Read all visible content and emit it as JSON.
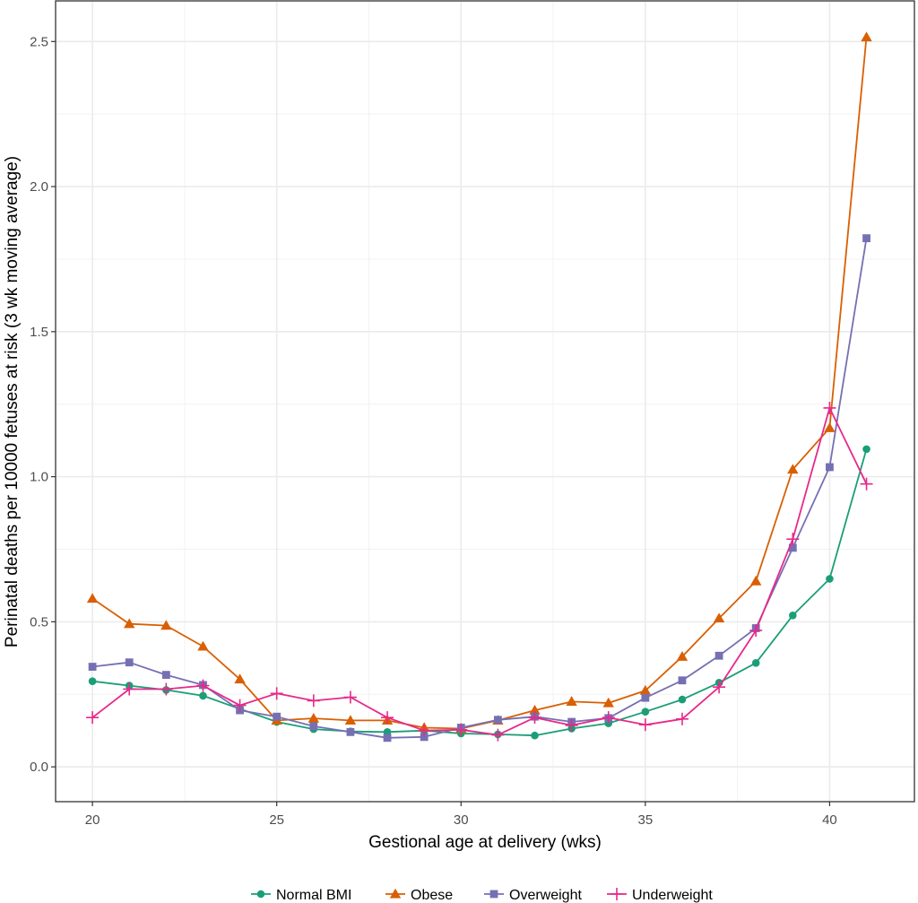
{
  "chart_data": {
    "type": "line",
    "title": "",
    "xlabel": "Gestional age at delivery (wks)",
    "ylabel": "Perinatal deaths per 10000 fetuses at risk (3 wk moving average)",
    "xlim": [
      19,
      42.3
    ],
    "ylim": [
      -0.12,
      2.64
    ],
    "x_ticks": [
      20,
      25,
      30,
      35,
      40
    ],
    "y_ticks": [
      0.0,
      0.5,
      1.0,
      1.5,
      2.0,
      2.5
    ],
    "y_tick_labels": [
      "0.0",
      "0.5",
      "1.0",
      "1.5",
      "2.0",
      "2.5"
    ],
    "grid": true,
    "legend_position": "bottom",
    "x": [
      20,
      21,
      22,
      23,
      24,
      25,
      26,
      27,
      28,
      29,
      30,
      31,
      32,
      33,
      34,
      35,
      36,
      37,
      38,
      39,
      40,
      41
    ],
    "series": [
      {
        "name": "Normal BMI",
        "color": "#1b9e77",
        "marker": "circle",
        "values": [
          0.295,
          0.28,
          0.265,
          0.245,
          0.2,
          0.155,
          0.13,
          0.122,
          0.12,
          0.125,
          0.115,
          0.112,
          0.108,
          0.132,
          0.15,
          0.19,
          0.232,
          0.29,
          0.358,
          0.522,
          0.648,
          1.095
        ]
      },
      {
        "name": "Obese",
        "color": "#d95f02",
        "marker": "triangle",
        "values": [
          0.58,
          0.493,
          0.487,
          0.415,
          0.302,
          0.16,
          0.167,
          0.16,
          0.16,
          0.135,
          0.132,
          0.16,
          0.195,
          0.225,
          0.22,
          0.263,
          0.38,
          0.512,
          0.64,
          1.025,
          1.168,
          2.515
        ]
      },
      {
        "name": "Overweight",
        "color": "#7570b3",
        "marker": "square",
        "values": [
          0.345,
          0.36,
          0.317,
          0.282,
          0.195,
          0.173,
          0.14,
          0.12,
          0.1,
          0.103,
          0.135,
          0.162,
          0.173,
          0.155,
          0.168,
          0.238,
          0.298,
          0.383,
          0.478,
          0.755,
          1.033,
          1.822
        ]
      },
      {
        "name": "Underweight",
        "color": "#e7298a",
        "marker": "plus",
        "values": [
          0.17,
          0.268,
          0.268,
          0.28,
          0.212,
          0.253,
          0.228,
          0.24,
          0.17,
          0.125,
          0.128,
          0.11,
          0.17,
          0.143,
          0.17,
          0.145,
          0.165,
          0.275,
          0.47,
          0.785,
          1.237,
          0.975
        ]
      }
    ]
  }
}
